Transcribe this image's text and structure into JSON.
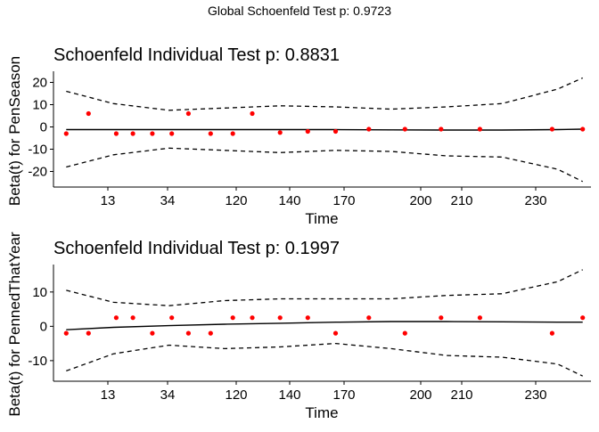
{
  "figure": {
    "global_title": "Global Schoenfeld Test p: 0.9723"
  },
  "chart_data": [
    {
      "type": "scatter",
      "title": "Schoenfeld Individual Test p: 0.8831",
      "xlabel": "Time",
      "ylabel": "Beta(t) for PenSeason",
      "x_tick_labels": [
        "13",
        "34",
        "120",
        "140",
        "170",
        "200",
        "210",
        "230"
      ],
      "y_ticks": [
        20,
        10,
        0,
        -10,
        -20
      ],
      "ylim": [
        -27,
        25
      ],
      "grid": false,
      "colors": {
        "points": "#ff0000",
        "fit": "#000000",
        "band": "#000000"
      },
      "points": {
        "x_index": [
          0.3,
          1.1,
          2.1,
          2.7,
          3.4,
          4.1,
          4.7,
          5.5,
          6.3,
          7.0,
          8.0,
          9.0,
          10.0,
          11.2,
          12.5,
          13.8,
          15.2,
          17.8,
          18.9
        ],
        "y": [
          -3.0,
          6.0,
          -3.0,
          -3.0,
          -3.0,
          -3.0,
          6.0,
          -3.0,
          -3.0,
          6.0,
          -2.5,
          -2.0,
          -2.0,
          -1.0,
          -1.0,
          -1.0,
          -1.0,
          -1.0,
          -1.0
        ]
      },
      "fit": {
        "x_index": [
          0.3,
          2.0,
          4.0,
          6.0,
          8.0,
          10.0,
          12.0,
          14.0,
          16.0,
          18.0,
          18.9
        ],
        "y": [
          -1.2,
          -1.2,
          -1.2,
          -1.2,
          -1.2,
          -1.2,
          -1.3,
          -1.4,
          -1.4,
          -1.2,
          -1.0
        ]
      },
      "band_upper": {
        "x_index": [
          0.3,
          2.0,
          4.0,
          6.0,
          8.0,
          10.0,
          12.0,
          14.0,
          16.0,
          18.0,
          18.9
        ],
        "y": [
          16.0,
          10.5,
          7.5,
          8.5,
          9.5,
          9.0,
          8.0,
          9.0,
          10.5,
          17.0,
          22.0
        ]
      },
      "band_lower": {
        "x_index": [
          0.3,
          2.0,
          4.0,
          6.0,
          8.0,
          10.0,
          12.0,
          14.0,
          16.0,
          18.0,
          18.9
        ],
        "y": [
          -18.0,
          -12.5,
          -9.5,
          -10.5,
          -11.5,
          -10.5,
          -11.0,
          -13.0,
          -13.5,
          -19.0,
          -24.5
        ]
      }
    },
    {
      "type": "scatter",
      "title": "Schoenfeld Individual Test p: 0.1997",
      "xlabel": "Time",
      "ylabel": "Beta(t) for PennedThatYear",
      "x_tick_labels": [
        "13",
        "34",
        "120",
        "140",
        "170",
        "200",
        "210",
        "230"
      ],
      "y_ticks": [
        10,
        0,
        -10
      ],
      "ylim": [
        -16,
        18
      ],
      "grid": false,
      "colors": {
        "points": "#ff0000",
        "fit": "#000000",
        "band": "#000000"
      },
      "points": {
        "x_index": [
          0.3,
          1.1,
          2.1,
          2.7,
          3.4,
          4.1,
          4.7,
          5.5,
          6.3,
          7.0,
          8.0,
          9.0,
          10.0,
          11.2,
          12.5,
          13.8,
          15.2,
          17.8,
          18.9
        ],
        "y": [
          -2.0,
          -2.0,
          2.5,
          2.5,
          -2.0,
          2.5,
          -2.0,
          -2.0,
          2.5,
          2.5,
          2.5,
          2.5,
          -2.0,
          2.5,
          -2.0,
          2.5,
          2.5,
          -2.0,
          2.5
        ]
      },
      "fit": {
        "x_index": [
          0.3,
          2.0,
          4.0,
          6.0,
          8.0,
          10.0,
          12.0,
          14.0,
          16.0,
          18.0,
          18.9
        ],
        "y": [
          -1.0,
          -0.3,
          0.2,
          0.6,
          0.9,
          1.2,
          1.4,
          1.4,
          1.3,
          1.2,
          1.2
        ]
      },
      "band_upper": {
        "x_index": [
          0.3,
          2.0,
          4.0,
          6.0,
          8.0,
          10.0,
          12.0,
          14.0,
          16.0,
          18.0,
          18.9
        ],
        "y": [
          10.5,
          7.0,
          6.0,
          7.5,
          8.0,
          8.0,
          8.0,
          9.0,
          9.5,
          13.0,
          16.5
        ]
      },
      "band_lower": {
        "x_index": [
          0.3,
          2.0,
          4.0,
          6.0,
          8.0,
          10.0,
          12.0,
          14.0,
          16.0,
          18.0,
          18.9
        ],
        "y": [
          -13.0,
          -8.0,
          -5.5,
          -6.5,
          -6.0,
          -5.0,
          -6.5,
          -8.5,
          -9.0,
          -11.0,
          -14.5
        ]
      }
    }
  ]
}
